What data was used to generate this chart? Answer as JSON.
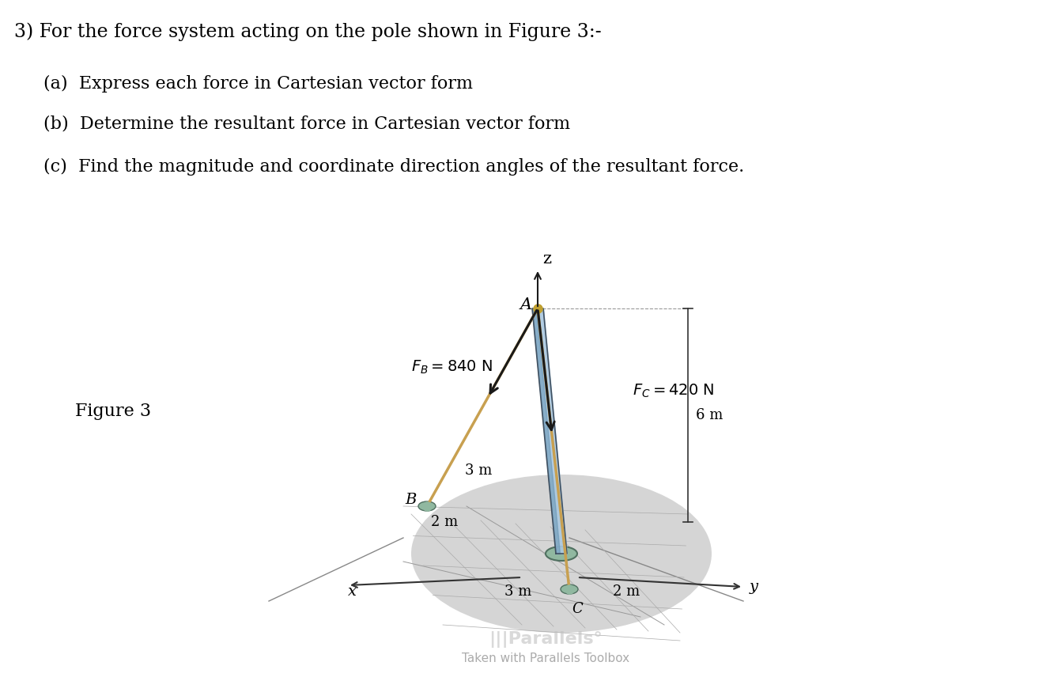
{
  "title_line": "3) For the force system acting on the pole shown in Figure 3:-",
  "part_a": "(a)  Express each force in Cartesian vector form",
  "part_b": "(b)  Determine the resultant force in Cartesian vector form",
  "part_c": "(c)  Find the magnitude and coordinate direction angles of the resultant force.",
  "figure_label": "Figure 3",
  "FB_label": "F_B = 840 N",
  "FC_label": "F_C = 420 N",
  "dim_6m": "6 m",
  "dim_3m_left": "3 m",
  "dim_2m_left": "2 m",
  "dim_3m_bottom": "3 m",
  "dim_2m_right": "2 m",
  "label_A": "A",
  "label_B": "B",
  "label_C": "C",
  "label_x": "x",
  "label_y": "y",
  "label_z": "z",
  "bg_color": "#ffffff",
  "ground_color": "#c8c8c8",
  "pole_color_light": "#aac8e0",
  "pole_color_dark": "#6090b0",
  "cable_color": "#c8a050",
  "text_color": "#000000",
  "title_fontsize": 17,
  "body_fontsize": 16,
  "label_fontsize": 14
}
